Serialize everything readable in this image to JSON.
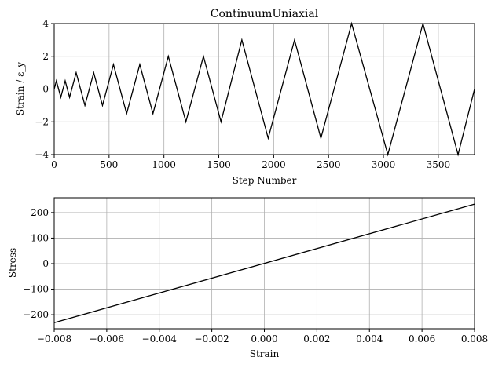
{
  "chart_data": [
    {
      "type": "line",
      "title": "ContinuumUniaxial",
      "xlabel": "Step Number",
      "ylabel": "Strain / ε_y",
      "xlim": [
        0,
        3830
      ],
      "ylim": [
        -4,
        4
      ],
      "xticks": [
        0,
        500,
        1000,
        1500,
        2000,
        2500,
        3000,
        3500
      ],
      "yticks": [
        -4,
        -2,
        0,
        2,
        4
      ],
      "x_tick_labels": [
        "0",
        "500",
        "1000",
        "1500",
        "2000",
        "2500",
        "3000",
        "3500"
      ],
      "y_tick_labels": [
        "−4",
        "−2",
        "0",
        "2",
        "4"
      ],
      "grid": true,
      "series_color": "#000000",
      "x": [
        0,
        20,
        60,
        100,
        140,
        200,
        280,
        360,
        440,
        540,
        660,
        780,
        900,
        1040,
        1200,
        1360,
        1520,
        1710,
        1950,
        2190,
        2430,
        2710,
        3040,
        3360,
        3680,
        3830
      ],
      "y": [
        0,
        0.5,
        -0.5,
        0.5,
        -0.5,
        1,
        -1,
        1,
        -1,
        1.5,
        -1.5,
        1.5,
        -1.5,
        2,
        -2,
        2,
        -2,
        3,
        -3,
        3,
        -3,
        4,
        -4,
        4,
        -4,
        0
      ]
    },
    {
      "type": "line",
      "title": "",
      "xlabel": "Strain",
      "ylabel": "Stress",
      "xlim": [
        -0.008,
        0.008
      ],
      "ylim": [
        -255,
        258
      ],
      "xticks": [
        -0.008,
        -0.006,
        -0.004,
        -0.002,
        0,
        0.002,
        0.004,
        0.006,
        0.008
      ],
      "yticks": [
        -200,
        -100,
        0,
        100,
        200
      ],
      "x_tick_labels": [
        "−0.008",
        "−0.006",
        "−0.004",
        "−0.002",
        "0.000",
        "0.002",
        "0.004",
        "0.006",
        "0.008"
      ],
      "y_tick_labels": [
        "−200",
        "−100",
        "0",
        "100",
        "200"
      ],
      "grid": true,
      "series_color": "#000000",
      "x": [
        -0.008,
        0.008
      ],
      "y": [
        -231,
        233
      ]
    }
  ]
}
